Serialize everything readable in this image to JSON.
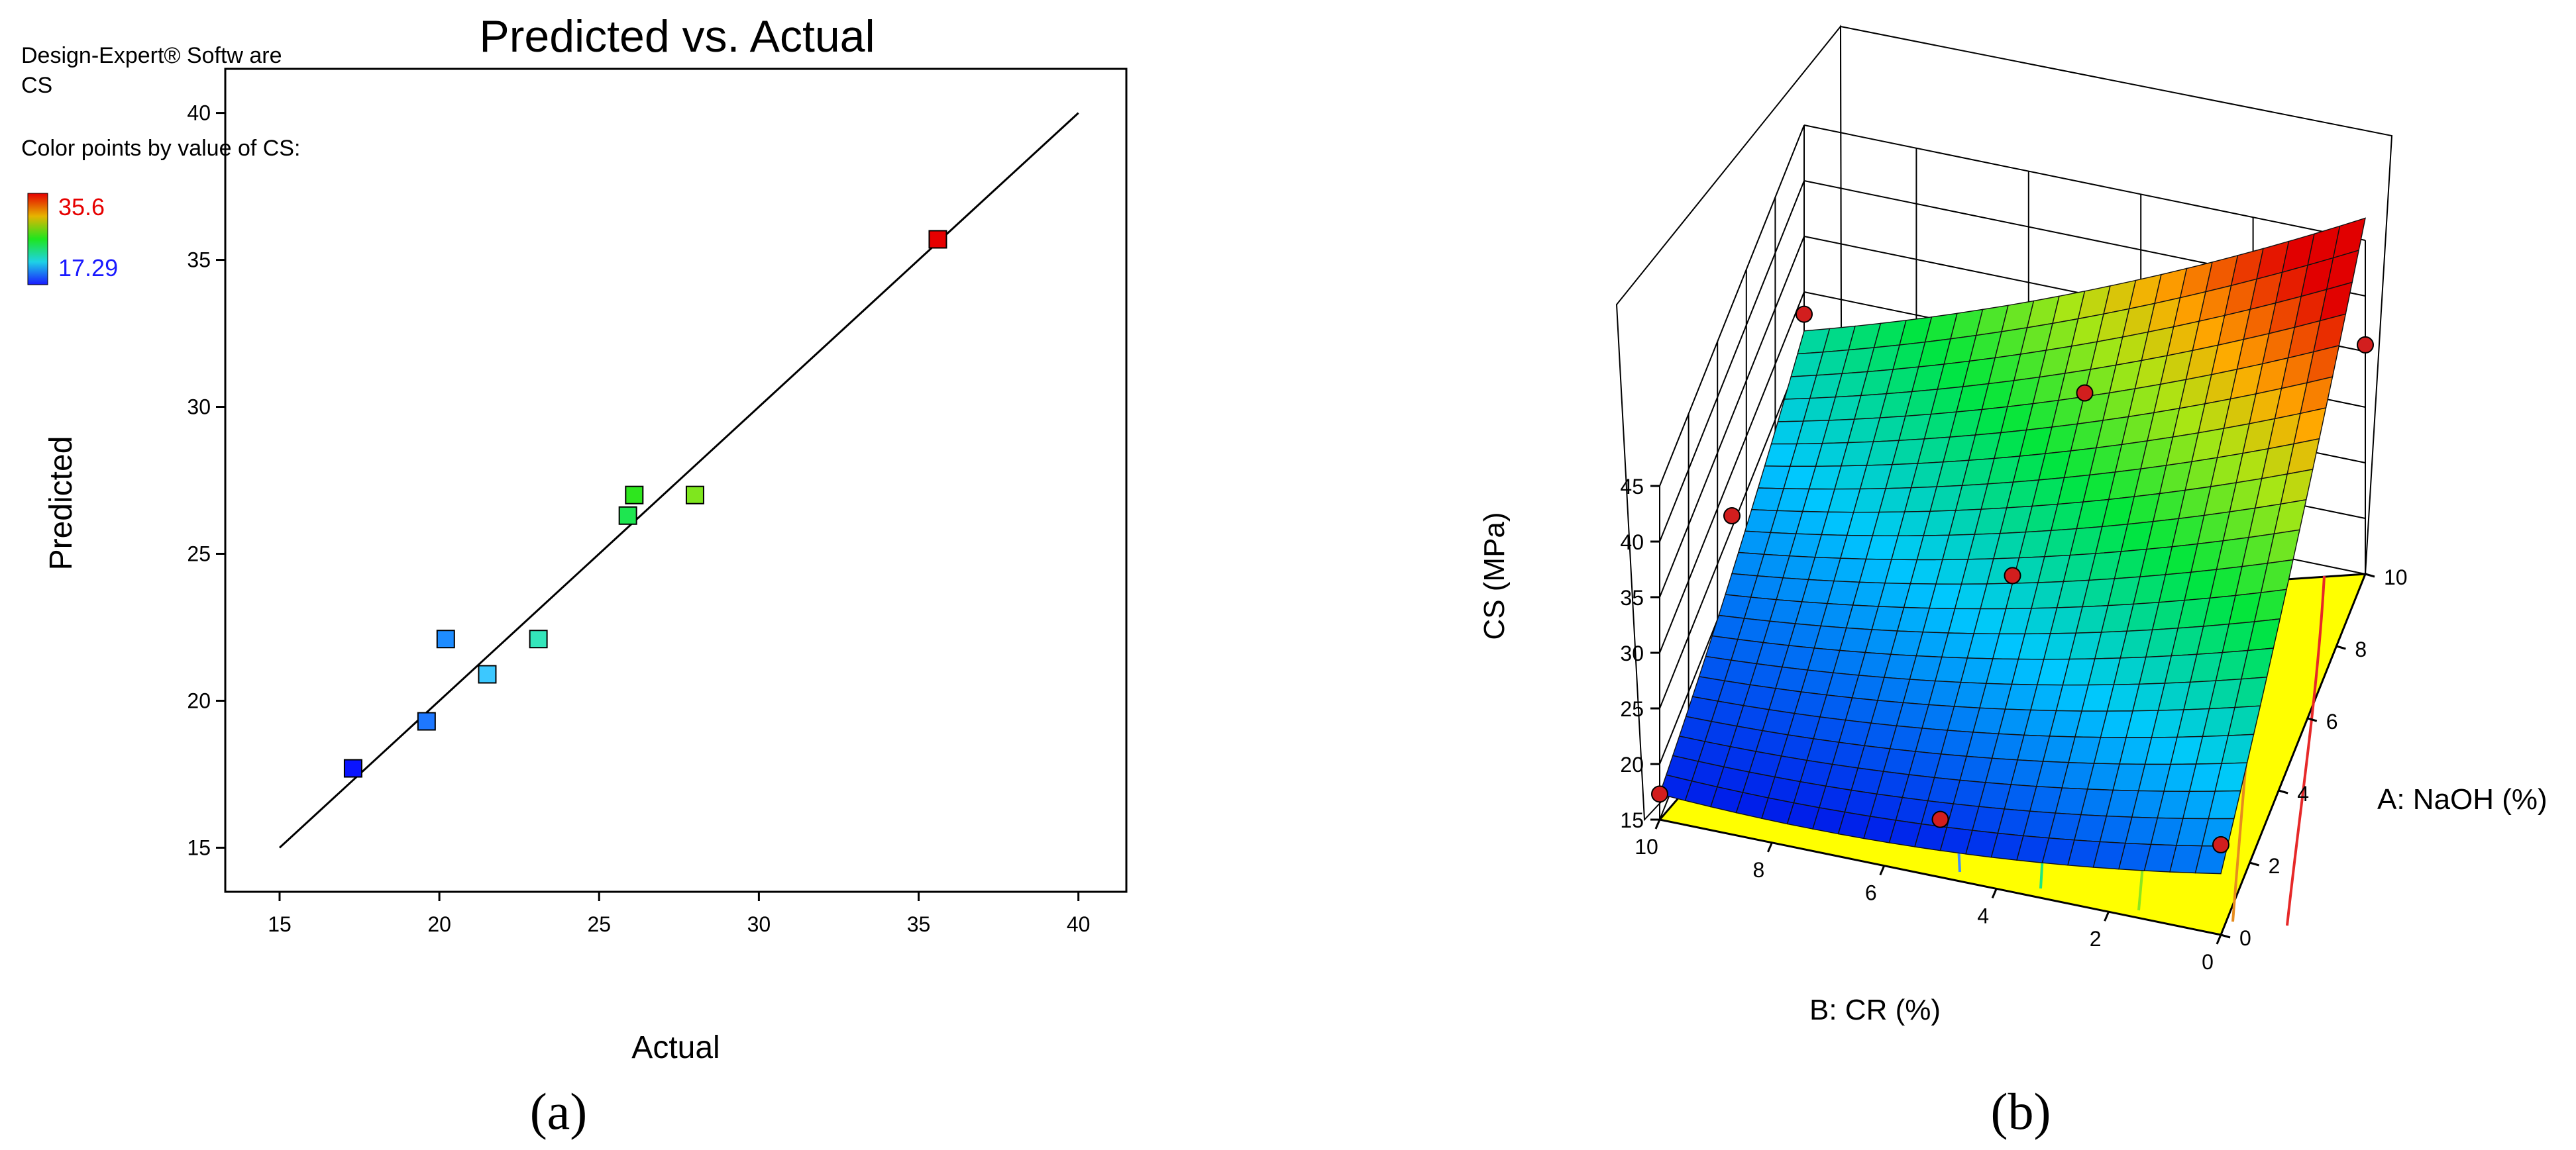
{
  "panel_a": {
    "software_label": "Design-Expert® Softw are",
    "response_label": "CS",
    "color_caption": "Color points by value of CS:",
    "color_max": "35.6",
    "color_min": "17.29",
    "color_max_hex": "#e60000",
    "color_min_hex": "#1a1aff",
    "caption": "(a)"
  },
  "panel_b": {
    "caption": "(b)",
    "zlabel": "CS (MPa)",
    "xlabel": "B: CR (%)",
    "ylabel": "A: NaOH (%)",
    "floor_color": "#ffff00"
  },
  "chart_data": [
    {
      "type": "scatter",
      "title": "Predicted vs. Actual",
      "xlabel": "Actual",
      "ylabel": "Predicted",
      "xlim": [
        13.3,
        41.5
      ],
      "ylim": [
        13.5,
        41.5
      ],
      "xticks": [
        15,
        20,
        25,
        30,
        35,
        40
      ],
      "yticks": [
        15,
        20,
        25,
        30,
        35,
        40
      ],
      "reference_line": {
        "x": [
          15,
          40
        ],
        "y": [
          15,
          40
        ]
      },
      "points": [
        {
          "x": 17.3,
          "y": 17.7,
          "color": "#0a14ff"
        },
        {
          "x": 19.6,
          "y": 19.3,
          "color": "#1e78ff"
        },
        {
          "x": 20.2,
          "y": 22.1,
          "color": "#1e8cff"
        },
        {
          "x": 21.5,
          "y": 20.9,
          "color": "#3cc8ff"
        },
        {
          "x": 23.1,
          "y": 22.1,
          "color": "#33e6bb"
        },
        {
          "x": 25.9,
          "y": 26.3,
          "color": "#1ee650"
        },
        {
          "x": 26.1,
          "y": 27.0,
          "color": "#2ee61e"
        },
        {
          "x": 28.0,
          "y": 27.0,
          "color": "#7fe61e"
        },
        {
          "x": 35.6,
          "y": 35.7,
          "color": "#e60000"
        }
      ]
    },
    {
      "type": "surface",
      "title": "",
      "xlabel": "B: CR (%)",
      "ylabel": "A: NaOH (%)",
      "zlabel": "CS (MPa)",
      "xlim": [
        0,
        10
      ],
      "ylim": [
        0,
        10
      ],
      "zlim": [
        15,
        45
      ],
      "xticks": [
        0,
        2,
        4,
        6,
        8,
        10
      ],
      "yticks": [
        0,
        2,
        4,
        6,
        8,
        10
      ],
      "zticks": [
        15,
        20,
        25,
        30,
        35,
        40,
        45
      ],
      "surface_corners": [
        {
          "cr": 10,
          "naoh": 0,
          "cs": 17.3
        },
        {
          "cr": 0,
          "naoh": 0,
          "cs": 20.5
        },
        {
          "cr": 10,
          "naoh": 10,
          "cs": 26.5
        },
        {
          "cr": 0,
          "naoh": 10,
          "cs": 42
        }
      ],
      "design_points": [
        {
          "cr": 10,
          "naoh": 0,
          "cs": 17.3
        },
        {
          "cr": 5,
          "naoh": 0,
          "cs": 20.2
        },
        {
          "cr": 0,
          "naoh": 0,
          "cs": 23.1
        },
        {
          "cr": 10,
          "naoh": 5,
          "cs": 26.1
        },
        {
          "cr": 5,
          "naoh": 5,
          "cs": 25.9
        },
        {
          "cr": 10,
          "naoh": 10,
          "cs": 28.0
        },
        {
          "cr": 5,
          "naoh": 10,
          "cs": 26.1
        },
        {
          "cr": 0,
          "naoh": 10,
          "cs": 35.6
        }
      ]
    }
  ]
}
